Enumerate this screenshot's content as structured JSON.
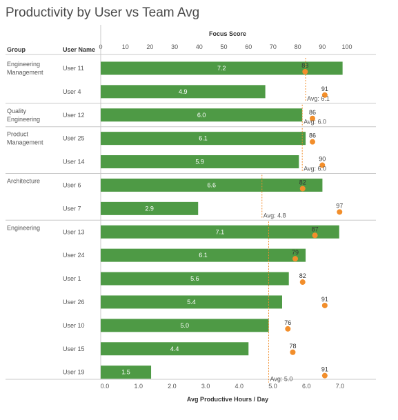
{
  "title": "Productivity by User vs Team Avg",
  "columns": {
    "group": "Group",
    "user": "User Name"
  },
  "colors": {
    "bar": "#4e9a45",
    "dot": "#f28e2b",
    "avg_line": "#f28e2b",
    "divider": "#c8c8c8"
  },
  "chart_data": {
    "type": "bar",
    "orientation": "horizontal",
    "title": "Productivity by User vs Team Avg",
    "top_axis": {
      "label": "Focus Score",
      "min": 0,
      "max": 100,
      "ticks": [
        "0",
        "10",
        "20",
        "30",
        "40",
        "50",
        "60",
        "70",
        "80",
        "90",
        "100"
      ]
    },
    "bottom_axis": {
      "label": "Avg Productive Hours / Day",
      "min": 0,
      "max": 7.4,
      "ticks": [
        "0.0",
        "1.0",
        "2.0",
        "3.0",
        "4.0",
        "5.0",
        "6.0",
        "7.0"
      ]
    },
    "groups": [
      {
        "name": "Engineering\nManagement",
        "users": [
          {
            "user": "User 11",
            "hours": 7.2,
            "hours_label": "7.2",
            "focus": 83,
            "focus_label": "83"
          },
          {
            "user": "User 4",
            "hours": 4.9,
            "hours_label": "4.9",
            "focus": 91,
            "focus_label": "91"
          }
        ],
        "avg": 6.1,
        "avg_label": "Avg: 6.1"
      },
      {
        "name": "Quality\nEngineering",
        "users": [
          {
            "user": "User 12",
            "hours": 6.0,
            "hours_label": "6.0",
            "focus": 86,
            "focus_label": "86"
          }
        ],
        "avg": 6.0,
        "avg_label": "Avg: 6.0"
      },
      {
        "name": "Product\nManagement",
        "users": [
          {
            "user": "User 25",
            "hours": 6.1,
            "hours_label": "6.1",
            "focus": 86,
            "focus_label": "86"
          },
          {
            "user": "User 14",
            "hours": 5.9,
            "hours_label": "5.9",
            "focus": 90,
            "focus_label": "90"
          }
        ],
        "avg": 6.0,
        "avg_label": "Avg: 6.0"
      },
      {
        "name": "Architecture",
        "users": [
          {
            "user": "User 6",
            "hours": 6.6,
            "hours_label": "6.6",
            "focus": 82,
            "focus_label": "82"
          },
          {
            "user": "User 7",
            "hours": 2.9,
            "hours_label": "2.9",
            "focus": 97,
            "focus_label": "97"
          }
        ],
        "avg": 4.8,
        "avg_label": "Avg: 4.8"
      },
      {
        "name": "Engineering",
        "users": [
          {
            "user": "User 13",
            "hours": 7.1,
            "hours_label": "7.1",
            "focus": 87,
            "focus_label": "87"
          },
          {
            "user": "User 24",
            "hours": 6.1,
            "hours_label": "6.1",
            "focus": 79,
            "focus_label": "79"
          },
          {
            "user": "User 1",
            "hours": 5.6,
            "hours_label": "5.6",
            "focus": 82,
            "focus_label": "82"
          },
          {
            "user": "User 26",
            "hours": 5.4,
            "hours_label": "5.4",
            "focus": 91,
            "focus_label": "91"
          },
          {
            "user": "User 10",
            "hours": 5.0,
            "hours_label": "5.0",
            "focus": 76,
            "focus_label": "76"
          },
          {
            "user": "User 15",
            "hours": 4.4,
            "hours_label": "4.4",
            "focus": 78,
            "focus_label": "78"
          },
          {
            "user": "User 19",
            "hours": 1.5,
            "hours_label": "1.5",
            "focus": 91,
            "focus_label": "91"
          }
        ],
        "avg": 5.0,
        "avg_label": "Avg: 5.0"
      }
    ]
  }
}
